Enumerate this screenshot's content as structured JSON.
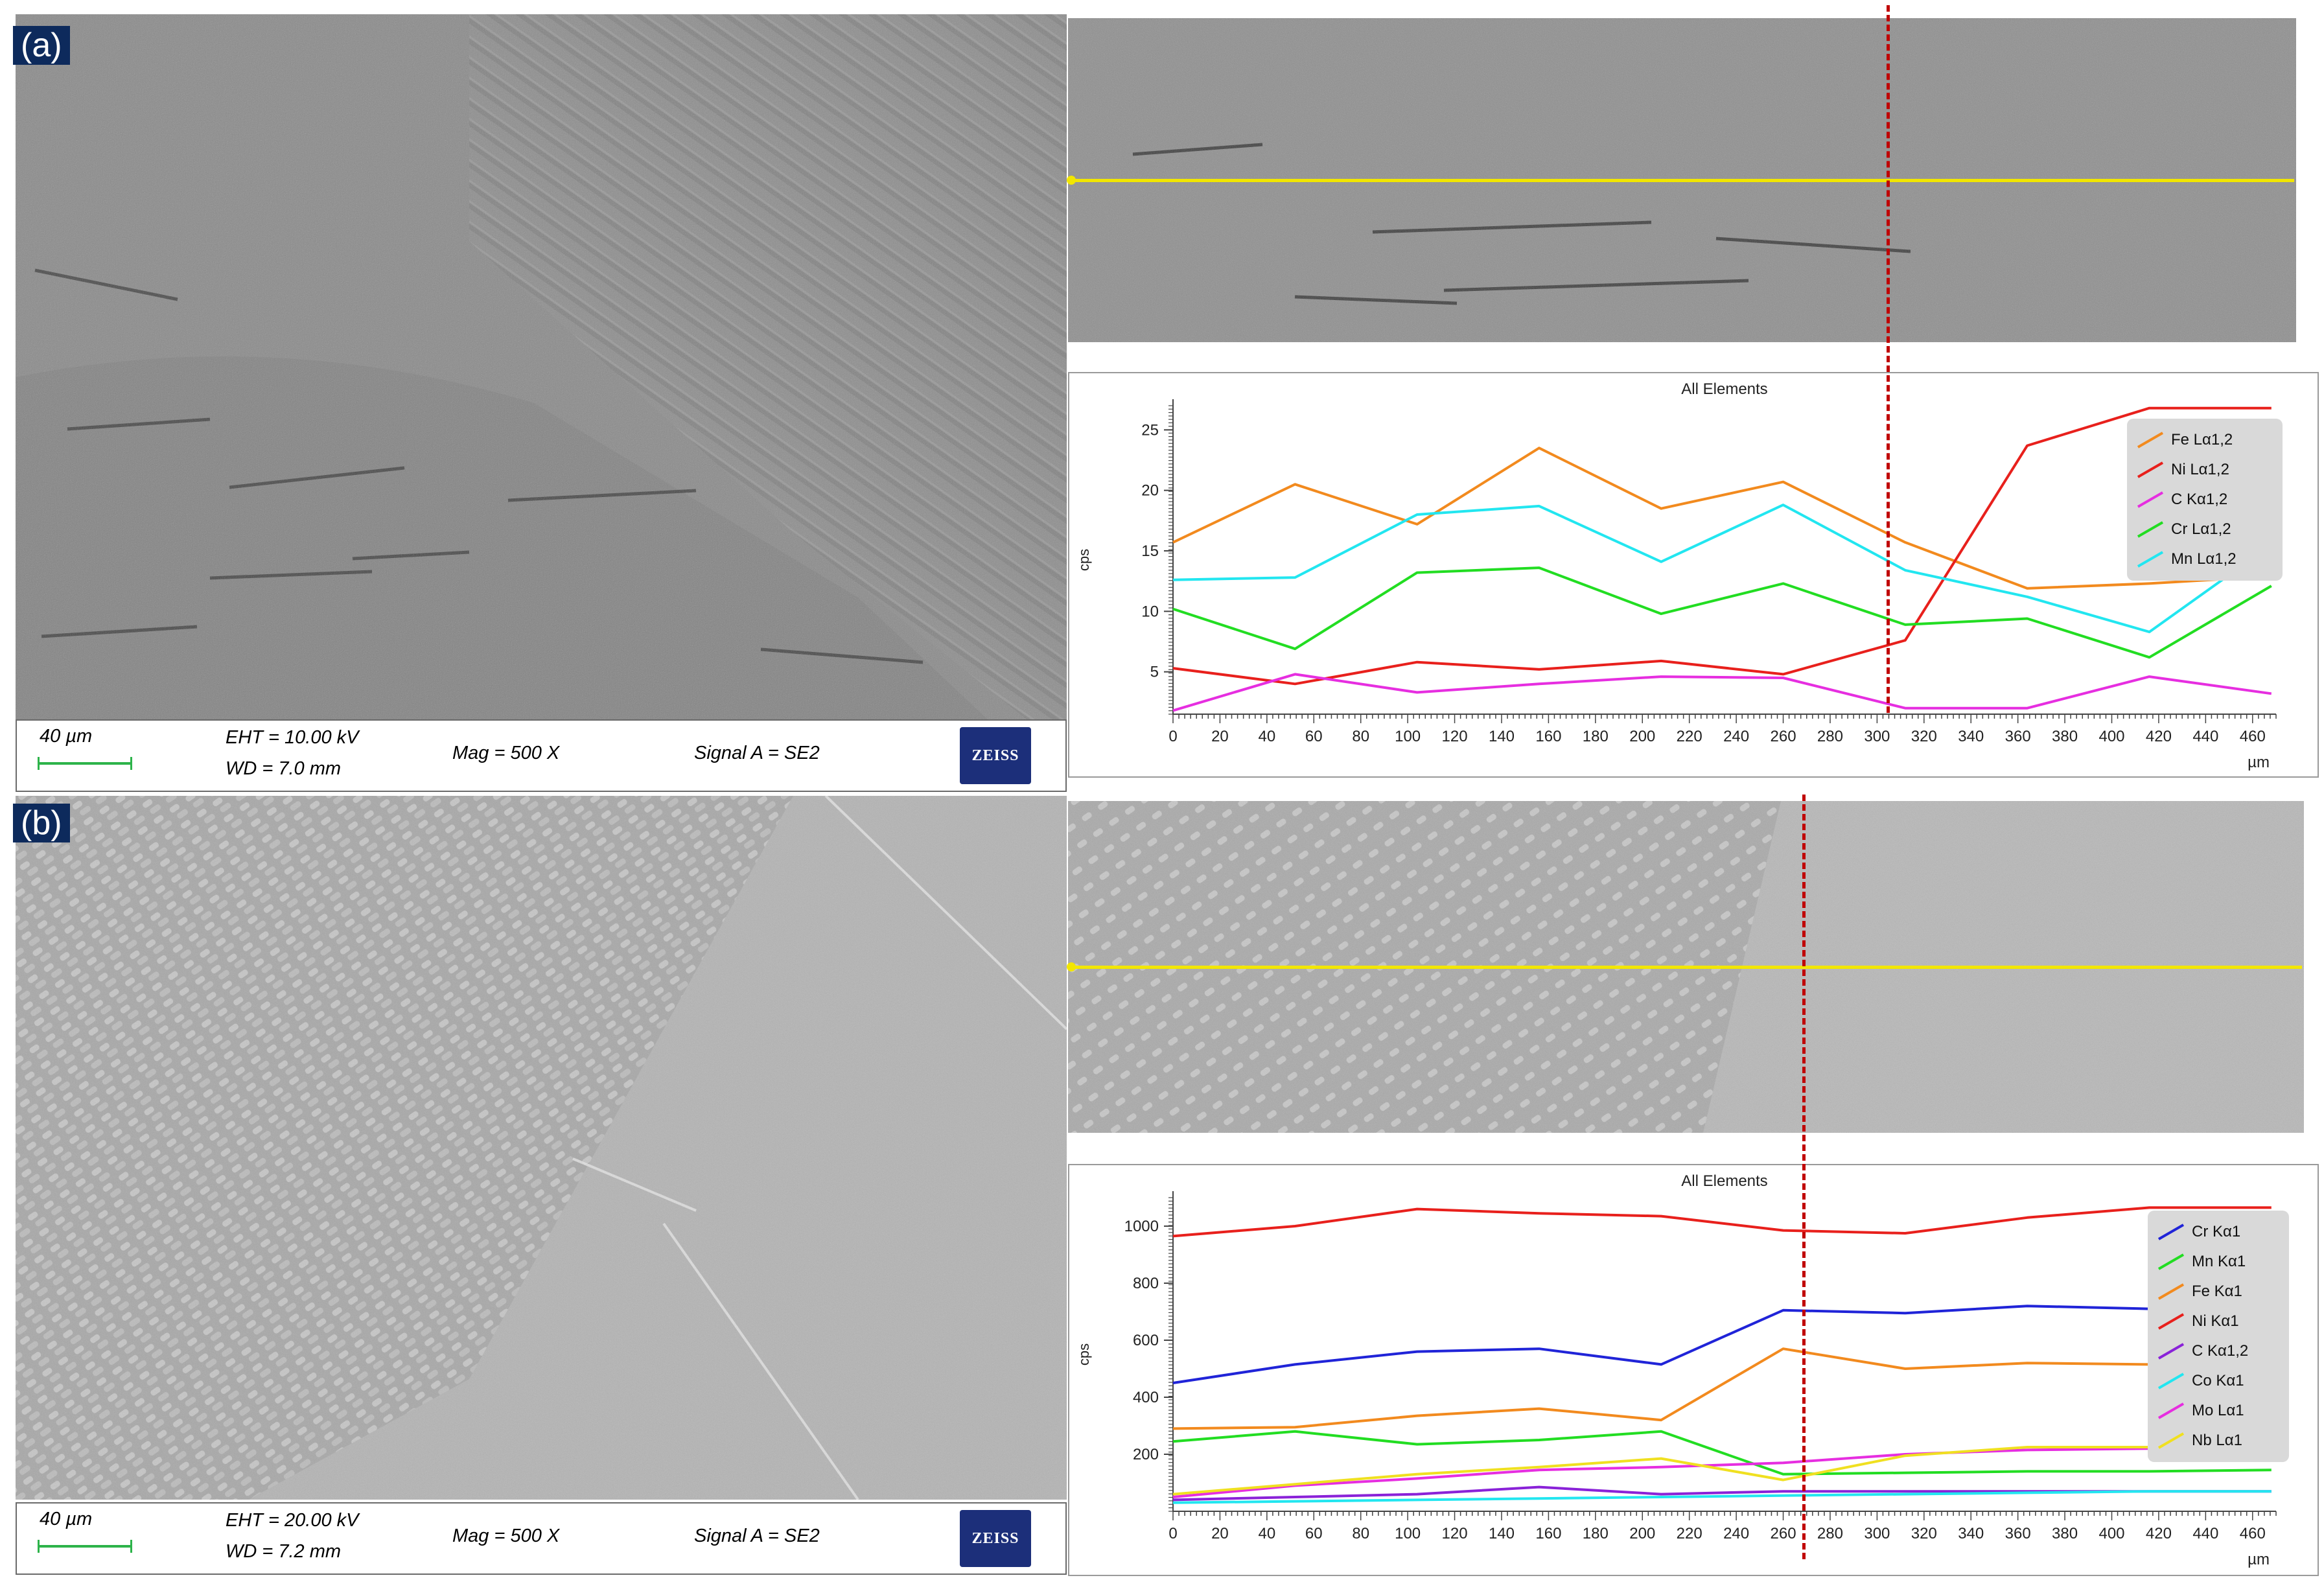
{
  "panels": {
    "a": {
      "label": "(a)",
      "scale_label": "40 µm",
      "eht": "EHT = 10.00 kV",
      "wd": "WD = 7.0 mm",
      "mag": "Mag =   500 X",
      "signal": "Signal A = SE2",
      "logo": "ZEISS"
    },
    "b": {
      "label": "(b)",
      "scale_label": "40 µm",
      "eht": "EHT = 20.00 kV",
      "wd": "WD = 7.2 mm",
      "mag": "Mag =   500 X",
      "signal": "Signal A = SE2",
      "logo": "ZEISS"
    }
  },
  "colors": {
    "scan_line": "#f2e600",
    "marker_line": "#c00000",
    "scale_bar": "#2db34a",
    "logo_bg": "#1c2f7a"
  },
  "chart_data": [
    {
      "type": "line",
      "title": "All Elements",
      "ylabel": "cps",
      "xunit": "µm",
      "xlim": [
        0,
        470
      ],
      "ylim": [
        1.5,
        27
      ],
      "yticks": [
        5,
        10,
        15,
        20,
        25
      ],
      "xticks": [
        0,
        20,
        40,
        60,
        80,
        100,
        120,
        140,
        160,
        180,
        200,
        220,
        240,
        260,
        280,
        300,
        320,
        340,
        360,
        380,
        400,
        420,
        440,
        460
      ],
      "legend_position": "top-right",
      "marker_x": 307,
      "series": [
        {
          "name": "Fe Lα1,2",
          "color": "#f28a1e",
          "x": [
            0,
            52,
            104,
            156,
            208,
            260,
            312,
            364,
            416,
            468
          ],
          "y": [
            15.7,
            20.5,
            17.2,
            23.5,
            18.5,
            20.7,
            15.7,
            11.9,
            12.3,
            12.9
          ]
        },
        {
          "name": "Ni Lα1,2",
          "color": "#e8201c",
          "x": [
            0,
            52,
            104,
            156,
            208,
            260,
            312,
            364,
            416,
            468
          ],
          "y": [
            5.3,
            4.0,
            5.8,
            5.2,
            5.9,
            4.8,
            7.6,
            23.7,
            26.8,
            26.8
          ]
        },
        {
          "name": "C Kα1,2",
          "color": "#e62ee0",
          "x": [
            0,
            52,
            104,
            156,
            208,
            260,
            312,
            364,
            416,
            468
          ],
          "y": [
            1.8,
            4.8,
            3.3,
            4.0,
            4.6,
            4.5,
            2.0,
            2.0,
            4.6,
            3.2
          ]
        },
        {
          "name": "Cr Lα1,2",
          "color": "#22dd22",
          "x": [
            0,
            52,
            104,
            156,
            208,
            260,
            312,
            364,
            416,
            468
          ],
          "y": [
            10.2,
            6.9,
            13.2,
            13.6,
            9.8,
            12.3,
            8.9,
            9.4,
            6.2,
            12.1
          ]
        },
        {
          "name": "Mn Lα1,2",
          "color": "#22e6f0",
          "x": [
            0,
            52,
            104,
            156,
            208,
            260,
            312,
            364,
            416,
            468
          ],
          "y": [
            12.6,
            12.8,
            18.0,
            18.7,
            14.1,
            18.8,
            13.4,
            11.2,
            8.3,
            15.5
          ]
        }
      ]
    },
    {
      "type": "line",
      "title": "All Elements",
      "ylabel": "cps",
      "xunit": "µm",
      "xlim": [
        0,
        470
      ],
      "ylim": [
        0,
        1100
      ],
      "yticks": [
        200,
        400,
        600,
        800,
        1000
      ],
      "xticks": [
        0,
        20,
        40,
        60,
        80,
        100,
        120,
        140,
        160,
        180,
        200,
        220,
        240,
        260,
        280,
        300,
        320,
        340,
        360,
        380,
        400,
        420,
        440,
        460
      ],
      "legend_position": "top-right",
      "marker_x": 267,
      "series": [
        {
          "name": "Cr Kα1",
          "color": "#2024d8",
          "x": [
            0,
            52,
            104,
            156,
            208,
            260,
            312,
            364,
            416,
            468
          ],
          "y": [
            450,
            515,
            560,
            570,
            515,
            705,
            695,
            720,
            710,
            740
          ]
        },
        {
          "name": "Mn Kα1",
          "color": "#22dd22",
          "x": [
            0,
            52,
            104,
            156,
            208,
            260,
            312,
            364,
            416,
            468
          ],
          "y": [
            245,
            280,
            235,
            250,
            280,
            130,
            135,
            140,
            140,
            145
          ]
        },
        {
          "name": "Fe Kα1",
          "color": "#f28a1e",
          "x": [
            0,
            52,
            104,
            156,
            208,
            260,
            312,
            364,
            416,
            468
          ],
          "y": [
            290,
            295,
            335,
            360,
            320,
            570,
            500,
            520,
            515,
            545
          ]
        },
        {
          "name": "Ni Kα1",
          "color": "#e8201c",
          "x": [
            0,
            52,
            104,
            156,
            208,
            260,
            312,
            364,
            416,
            468
          ],
          "y": [
            965,
            1000,
            1060,
            1045,
            1035,
            985,
            975,
            1030,
            1065,
            1065
          ]
        },
        {
          "name": "C Kα1,2",
          "color": "#8a22d8",
          "x": [
            0,
            52,
            104,
            156,
            208,
            260,
            312,
            364,
            416,
            468
          ],
          "y": [
            40,
            50,
            60,
            85,
            60,
            70,
            70,
            70,
            70,
            70
          ]
        },
        {
          "name": "Co Kα1",
          "color": "#22e6f0",
          "x": [
            0,
            52,
            104,
            156,
            208,
            260,
            312,
            364,
            416,
            468
          ],
          "y": [
            30,
            35,
            40,
            45,
            50,
            55,
            60,
            65,
            70,
            70
          ]
        },
        {
          "name": "Mo Lα1",
          "color": "#e62ee0",
          "x": [
            0,
            52,
            104,
            156,
            208,
            260,
            312,
            364,
            416,
            468
          ],
          "y": [
            50,
            90,
            115,
            145,
            155,
            170,
            200,
            215,
            220,
            230
          ]
        },
        {
          "name": "Nb Lα1",
          "color": "#f0e020",
          "x": [
            0,
            52,
            104,
            156,
            208,
            260,
            312,
            364,
            416,
            468
          ],
          "y": [
            60,
            95,
            130,
            155,
            185,
            110,
            195,
            225,
            225,
            225
          ]
        }
      ]
    }
  ]
}
